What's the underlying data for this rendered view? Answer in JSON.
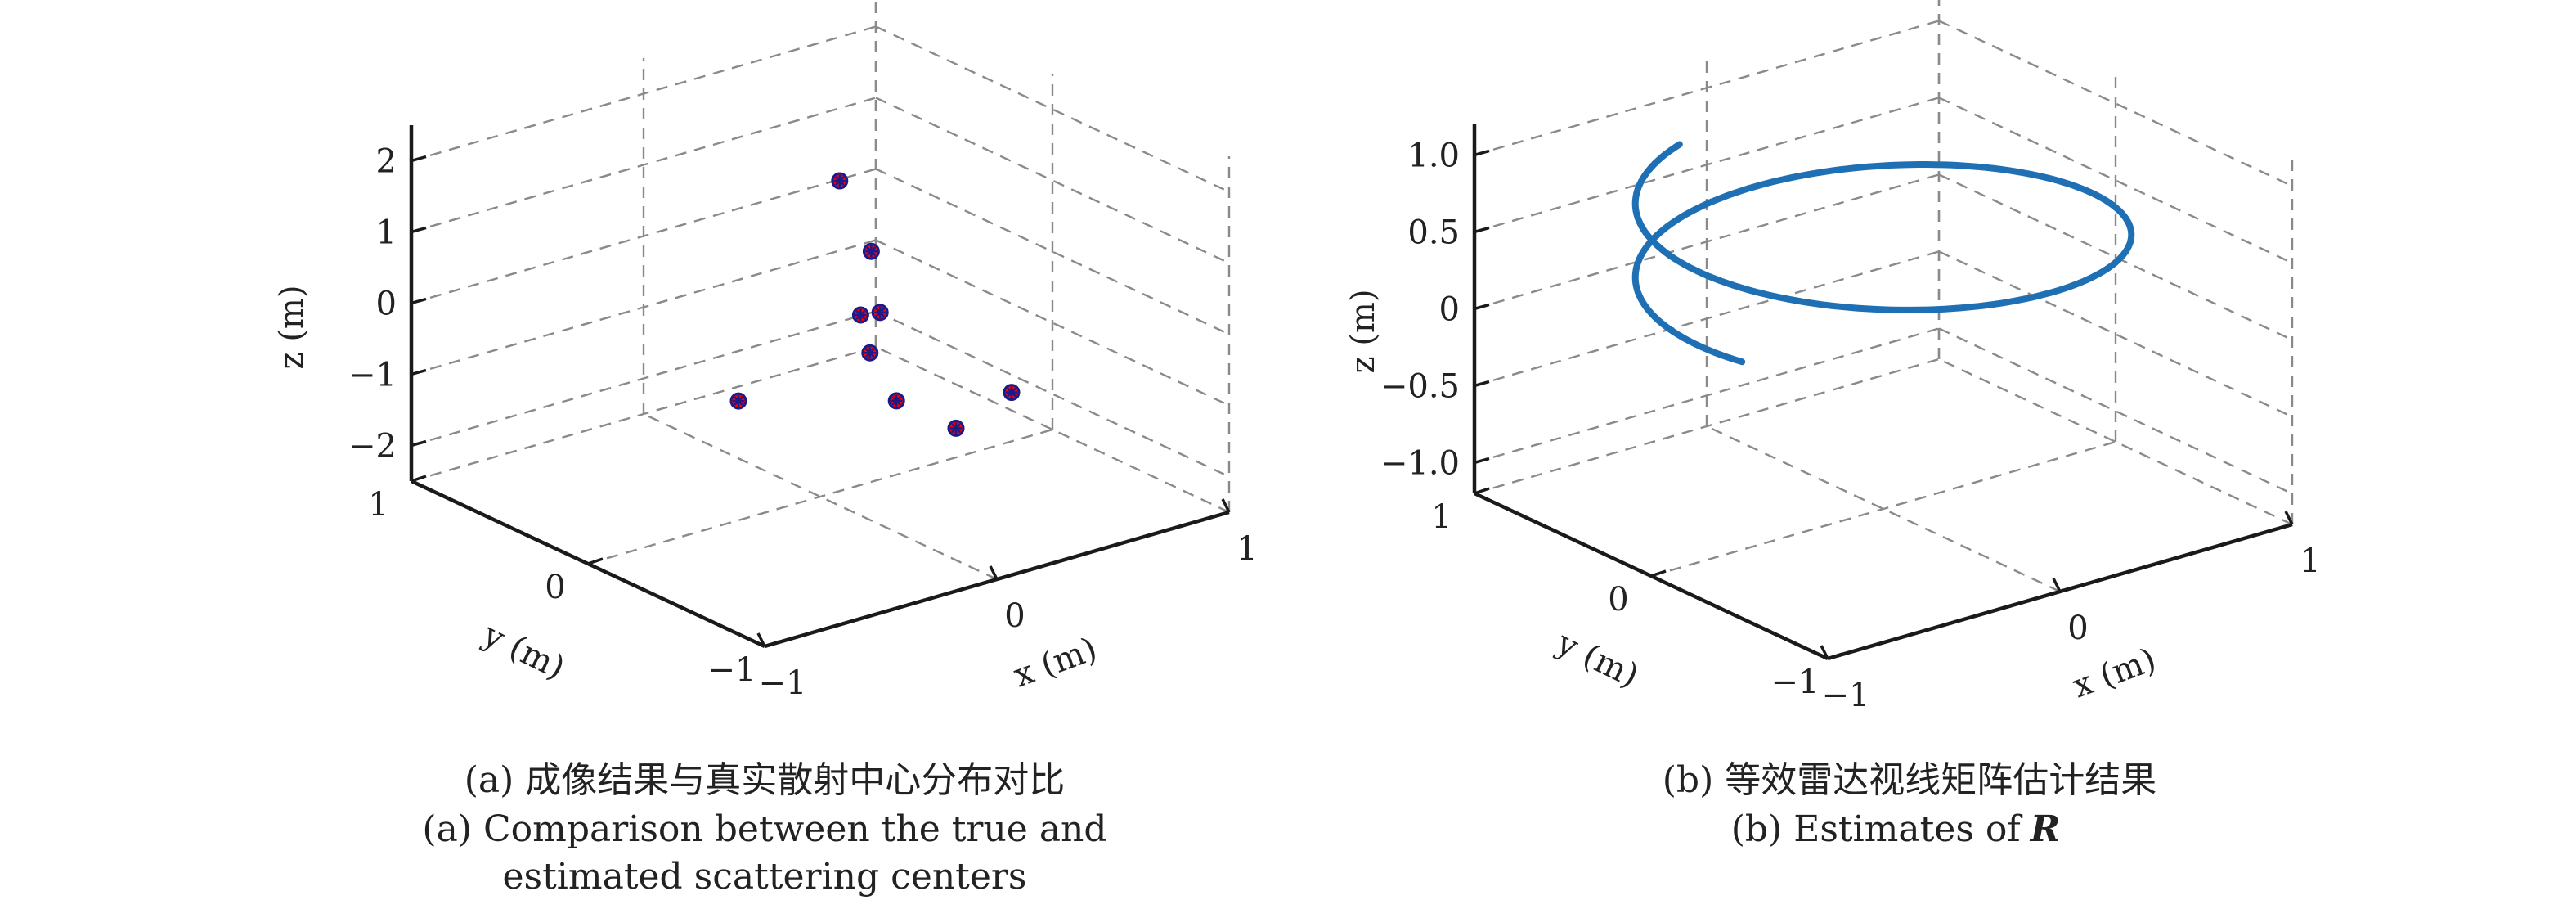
{
  "chart_data": [
    {
      "type": "scatter",
      "panel": "a",
      "xlabel": "x (m)",
      "ylabel": "y (m)",
      "zlabel": "z (m)",
      "xlim": [
        -1,
        1
      ],
      "ylim": [
        -1,
        1
      ],
      "zlim": [
        -2.5,
        2.5
      ],
      "x_ticks": [
        "−1",
        "0",
        "1"
      ],
      "y_ticks": [
        "−1",
        "0",
        "1"
      ],
      "z_ticks": [
        "2",
        "1",
        "0",
        "−1",
        "−2"
      ],
      "z_tick_values": [
        2,
        1,
        0,
        -1,
        -2
      ],
      "grid": true,
      "series": [
        {
          "marker": "red filled circle with asterisk",
          "x": [
            0.35,
            0.25,
            0.1,
            0.6,
            0.6,
            0.9,
            0.1,
            -0.2,
            -0.1
          ],
          "y": [
            0.35,
            0.1,
            -0.3,
            0.5,
            0.45,
            0.1,
            -0.15,
            0.2,
            -0.9
          ],
          "z": [
            1.2,
            -0.3,
            -0.9,
            -0.2,
            -1.0,
            -2.0,
            -0.4,
            -1.2,
            -0.4
          ]
        }
      ],
      "caption_cn": "(a) 成像结果与真实散射中心分布对比",
      "caption_en_line1": "(a) Comparison between the true and",
      "caption_en_line2": "estimated scattering centers"
    },
    {
      "type": "line",
      "panel": "b",
      "xlabel": "x (m)",
      "ylabel": "y (m)",
      "zlabel": "z (m)",
      "xlim": [
        -1,
        1
      ],
      "ylim": [
        -1,
        1
      ],
      "zlim": [
        -1.2,
        1.2
      ],
      "x_ticks": [
        "−1",
        "0",
        "1"
      ],
      "y_ticks": [
        "−1",
        "0",
        "1"
      ],
      "z_ticks": [
        "1.0",
        "0.5",
        "0",
        "−0.5",
        "−1.0"
      ],
      "z_tick_values": [
        1.0,
        0.5,
        0,
        -0.5,
        -1.0
      ],
      "grid": true,
      "series": [
        {
          "style": "blue helical curve",
          "color": "#1f6fb4",
          "t_turns": [
            -0.7,
            0.55
          ],
          "radius": 0.85,
          "z_range": [
            0.85,
            0.25
          ]
        }
      ],
      "caption_cn": "(b) 等效雷达视线矩阵估计结果",
      "caption_en_prefix": "(b) Estimates of",
      "caption_en_symbol": "R"
    }
  ]
}
